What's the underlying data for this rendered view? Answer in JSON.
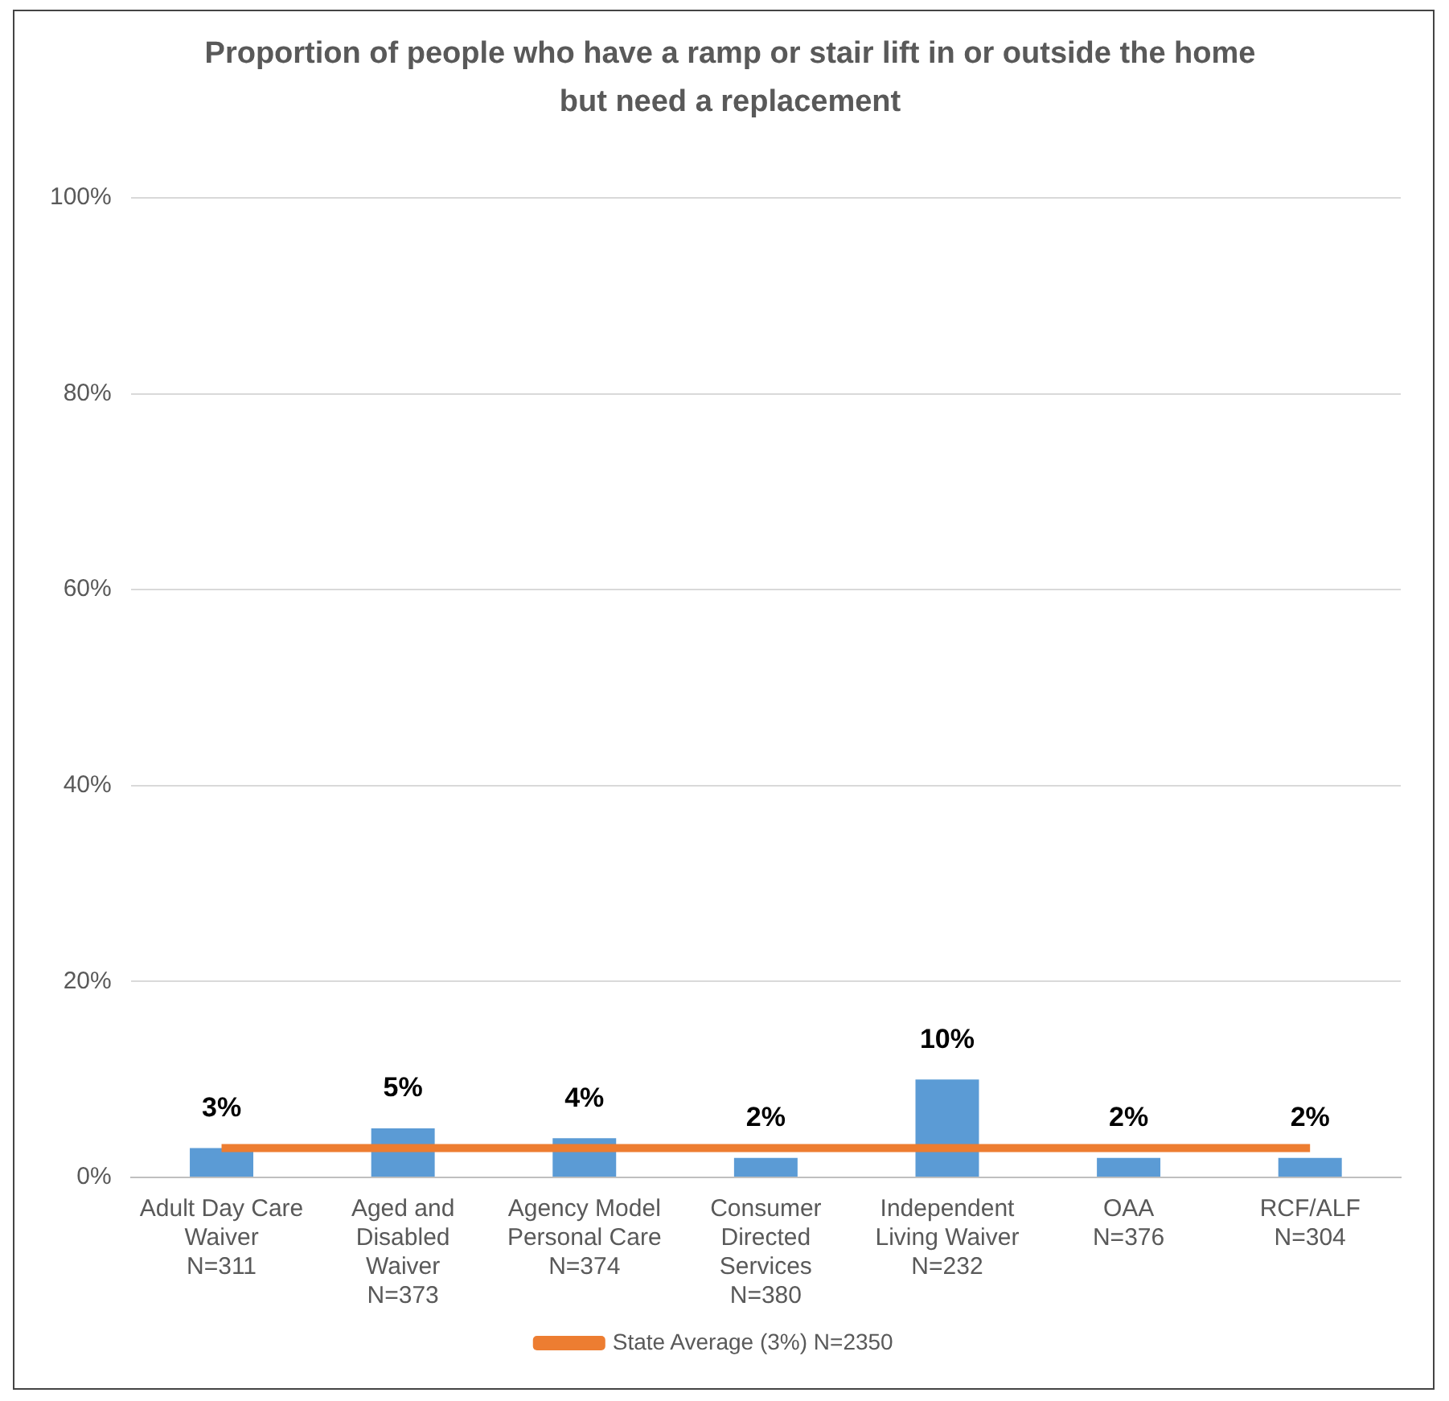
{
  "chart_data": {
    "type": "bar",
    "title": "Proportion of people who have a ramp or stair lift in or outside the home but need a replacement",
    "categories": [
      "Adult Day Care\nWaiver\nN=311",
      "Aged and\nDisabled\nWaiver\nN=373",
      "Agency Model\nPersonal Care\nN=374",
      "Consumer\nDirected\nServices\nN=380",
      "Independent\nLiving Waiver\nN=232",
      "OAA\nN=376",
      "RCF/ALF\nN=304"
    ],
    "series": [
      {
        "color": "#5b9bd5",
        "values": [
          3,
          5,
          4,
          2,
          10,
          2,
          2
        ],
        "value_labels": [
          "3%",
          "5%",
          "4%",
          "2%",
          "10%",
          "2%",
          "2%"
        ]
      },
      {
        "type": "line",
        "name": "State Average (3%) N=2350",
        "color": "#ed7d31",
        "values": [
          3,
          3,
          3,
          3,
          3,
          3,
          3
        ]
      }
    ],
    "ylim": [
      0,
      100
    ],
    "yticks": [
      {
        "value": 0,
        "label": "0%"
      },
      {
        "value": 20,
        "label": "20%"
      },
      {
        "value": 40,
        "label": "40%"
      },
      {
        "value": 60,
        "label": "60%"
      },
      {
        "value": 80,
        "label": "80%"
      },
      {
        "value": 100,
        "label": "100%"
      }
    ],
    "grid": "y",
    "legend": "bottom",
    "marker": "none",
    "line_style": "solid"
  }
}
